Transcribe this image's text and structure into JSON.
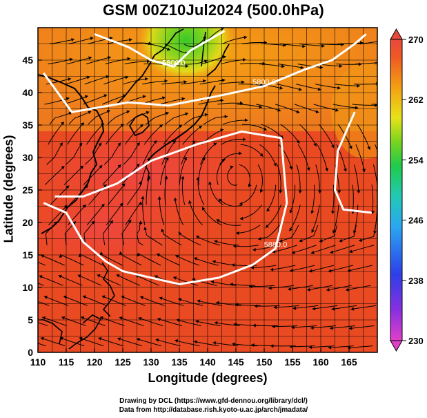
{
  "title": "GSM 00Z10Jul2024 (500.0hPa)",
  "axes": {
    "xlabel": "Longitude (degrees)",
    "ylabel": "Latitude (degrees)",
    "xlim": [
      110,
      170
    ],
    "ylim": [
      0,
      50
    ],
    "xticks": [
      110,
      115,
      120,
      125,
      130,
      135,
      140,
      145,
      150,
      155,
      160,
      165
    ],
    "yticks": [
      0,
      5,
      10,
      15,
      20,
      25,
      30,
      35,
      40,
      45
    ],
    "grid": true
  },
  "colorbar": {
    "unit": "",
    "range": [
      230,
      270
    ],
    "ticks": [
      230,
      238,
      246,
      254,
      262,
      270
    ],
    "colors": [
      "#e040c8",
      "#7a2fe0",
      "#2d3fe8",
      "#2aa8f0",
      "#22c9b4",
      "#1fca4a",
      "#7ad41e",
      "#e8e21a",
      "#f5a012",
      "#ee5a24",
      "#e8483c"
    ]
  },
  "contours": [
    {
      "label": "5880.0"
    },
    {
      "label": "5800.0"
    }
  ],
  "credits": {
    "line1": "Drawing by DCL (https://www.gfd-dennou.org/library/dcl/)",
    "line2": "Data from http://database.rish.kyoto-u.ac.jp/arch/jmadata/"
  },
  "chart_data": {
    "type": "heatmap",
    "title": "GSM 00Z10Jul2024 (500.0hPa)",
    "xlabel": "Longitude (degrees)",
    "ylabel": "Latitude (degrees)",
    "xlim": [
      110,
      170
    ],
    "ylim": [
      0,
      50
    ],
    "colorbar_range": [
      230,
      270
    ],
    "colorbar_ticks": [
      230,
      238,
      246,
      254,
      262,
      270
    ],
    "field_estimate": [
      {
        "lon": 137,
        "lat": 48,
        "value": 253
      },
      {
        "lon": 120,
        "lat": 46,
        "value": 265
      },
      {
        "lon": 150,
        "lat": 45,
        "value": 264
      },
      {
        "lon": 165,
        "lat": 45,
        "value": 265
      },
      {
        "lon": 140,
        "lat": 38,
        "value": 266
      },
      {
        "lon": 125,
        "lat": 30,
        "value": 269
      },
      {
        "lon": 145,
        "lat": 27,
        "value": 267
      },
      {
        "lon": 130,
        "lat": 20,
        "value": 268
      },
      {
        "lon": 155,
        "lat": 15,
        "value": 268
      },
      {
        "lon": 120,
        "lat": 8,
        "value": 268
      },
      {
        "lon": 160,
        "lat": 5,
        "value": 268
      }
    ],
    "contours": [
      {
        "label": "5880.0",
        "points": [
          [
            111,
            23
          ],
          [
            115,
            21.5
          ],
          [
            118,
            17
          ],
          [
            122,
            14
          ],
          [
            125,
            12.5
          ],
          [
            130,
            11.5
          ],
          [
            135,
            10.5
          ],
          [
            142,
            11.5
          ],
          [
            148,
            13.5
          ],
          [
            152,
            16
          ],
          [
            154,
            23
          ],
          [
            153,
            33
          ],
          [
            146,
            34
          ],
          [
            138,
            32
          ],
          [
            130,
            29.5
          ],
          [
            124,
            26
          ],
          [
            118,
            24
          ],
          [
            113,
            24
          ]
        ]
      },
      {
        "label": "5800.0",
        "points": [
          [
            111,
            43
          ],
          [
            116,
            37
          ],
          [
            126,
            38.5
          ],
          [
            133,
            38
          ],
          [
            142,
            39.5
          ],
          [
            150,
            41
          ],
          [
            157,
            43.5
          ],
          [
            162,
            45
          ],
          [
            166,
            47.5
          ],
          [
            168,
            49
          ]
        ]
      },
      {
        "label": "5800.0",
        "points": [
          [
            120,
            49
          ],
          [
            126,
            47
          ],
          [
            130,
            45
          ],
          [
            134,
            44
          ],
          [
            137,
            46.5
          ],
          [
            140,
            48
          ],
          [
            143,
            49.5
          ]
        ]
      },
      {
        "label": "",
        "points": [
          [
            166,
            37
          ],
          [
            163,
            31
          ],
          [
            162.5,
            25
          ],
          [
            164,
            22
          ],
          [
            169,
            21.5
          ]
        ]
      }
    ]
  }
}
